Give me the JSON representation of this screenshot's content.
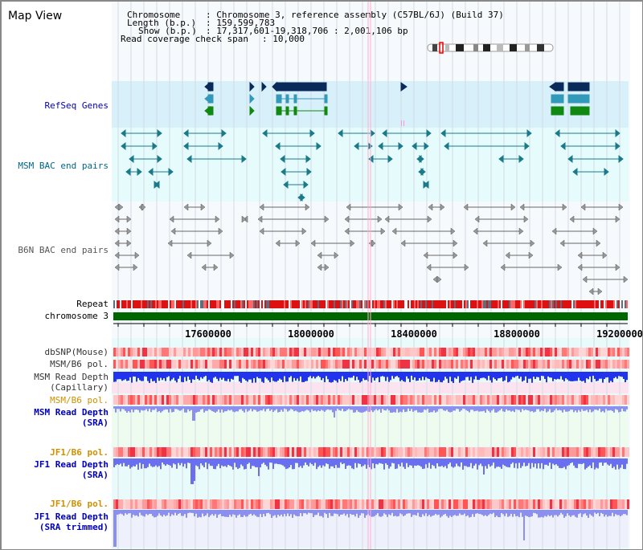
{
  "title": "Map View",
  "info": {
    "chromosome_label": "Chromosome",
    "chromosome_value": ": Chromosome 3, reference assembly (C57BL/6J) (Build 37)",
    "length_label": "Length (b.p.)",
    "length_value": ": 159,599,783",
    "show_label": "Show (b.p.)",
    "show_value": ": 17,317,601-19,318,706 : 2,001,106 bp",
    "coverage_label": "Read coverage check span",
    "coverage_value": ": 10,000"
  },
  "axis": {
    "ticks": [
      "17600000",
      "18000000",
      "18400000",
      "18800000",
      "19200000"
    ]
  },
  "tracks": {
    "refseq": "RefSeq Genes",
    "msm_bac": "MSM BAC end pairs",
    "b6n_bac": "B6N BAC end pairs",
    "repeat": "Repeat",
    "chromosome": "chromosome 3",
    "dbsnp": "dbSNP(Mouse)",
    "msm_b6_pol_1": "MSM/B6 pol.",
    "msm_read_depth_cap_1": "MSM Read Depth",
    "msm_read_depth_cap_2": "(Capillary)",
    "msm_b6_pol_2": "MSM/B6 pol.",
    "msm_read_depth_sra_1": "MSM Read Depth",
    "msm_read_depth_sra_2": "(SRA)",
    "jf1_b6_pol_1": "JF1/B6 pol.",
    "jf1_read_depth_1": "JF1 Read Depth",
    "jf1_read_depth_2": "(SRA)",
    "jf1_b6_pol_2": "JF1/B6 pol.",
    "jf1_trim_1": "JF1 Read Depth",
    "jf1_trim_2": "(SRA trimmed)"
  },
  "colors": {
    "refseq_bg": "#d8f0fa",
    "msm_bg": "#e6fbfb",
    "variant_bg": "#e8fafa",
    "pink_bg": "#fbe3ef",
    "green_bg": "#eefcf0",
    "depth_blue": "#2233ee",
    "depth_light": "#8a8ff0",
    "snp_red": "#ee3344",
    "label_blue": "#0000bb",
    "label_orange": "#d09000",
    "label_teal": "#006688",
    "label_gray": "#555555",
    "chrom_green": "#006600"
  }
}
